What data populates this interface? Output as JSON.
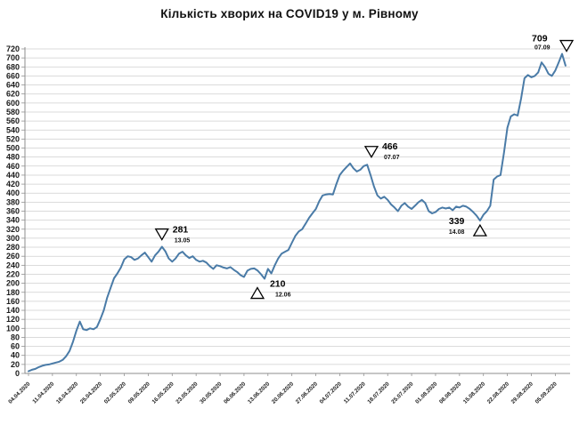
{
  "title": "Кількість хворих на COVID19 у м. Рівному",
  "chart_data": {
    "type": "line",
    "title": "Кількість хворих на COVID19 у м. Рівному",
    "xlabel": "",
    "ylabel": "",
    "grid": true,
    "legend": "none",
    "line_color": "#4a7ba7",
    "grid_color": "#cfcfcf",
    "axis_color": "#8c8c8c",
    "y_axis": {
      "min": 0,
      "max": 720,
      "step": 20
    },
    "x_start_date": "04.04.2020",
    "x_end_date": "08.09.2020",
    "x_tick_labels": [
      "04.04.2020",
      "11.04.2020",
      "18.04.2020",
      "25.04.2020",
      "02.05.2020",
      "09.05.2020",
      "16.05.2020",
      "23.05.2020",
      "30.05.2020",
      "06.06.2020",
      "13.06.2020",
      "20.06.2020",
      "27.06.2020",
      "04.07.2020",
      "11.07.2020",
      "18.07.2020",
      "25.07.2020",
      "01.08.2020",
      "08.08.2020",
      "15.08.2020",
      "22.08.2020",
      "29.08.2020",
      "05.09.2020"
    ],
    "series": [
      {
        "name": "Кількість хворих",
        "values": [
          5,
          8,
          10,
          14,
          17,
          19,
          20,
          22,
          24,
          26,
          30,
          38,
          50,
          70,
          95,
          115,
          98,
          96,
          100,
          98,
          103,
          120,
          140,
          168,
          190,
          211,
          222,
          235,
          253,
          260,
          258,
          252,
          255,
          262,
          268,
          258,
          248,
          262,
          270,
          281,
          271,
          255,
          248,
          255,
          266,
          270,
          262,
          256,
          260,
          252,
          248,
          250,
          246,
          238,
          232,
          240,
          238,
          235,
          233,
          236,
          230,
          225,
          218,
          214,
          228,
          232,
          233,
          228,
          220,
          210,
          232,
          222,
          240,
          255,
          266,
          270,
          274,
          290,
          305,
          315,
          320,
          332,
          345,
          355,
          365,
          382,
          395,
          397,
          398,
          397,
          420,
          440,
          450,
          458,
          466,
          455,
          448,
          452,
          460,
          463,
          440,
          415,
          395,
          388,
          392,
          385,
          375,
          368,
          360,
          372,
          378,
          370,
          365,
          372,
          380,
          385,
          378,
          360,
          355,
          358,
          365,
          368,
          366,
          368,
          362,
          370,
          368,
          372,
          370,
          365,
          358,
          350,
          339,
          352,
          360,
          372,
          430,
          437,
          440,
          490,
          545,
          570,
          575,
          572,
          610,
          655,
          662,
          657,
          660,
          668,
          690,
          680,
          665,
          660,
          672,
          690,
          709,
          683
        ]
      }
    ],
    "annotations": [
      {
        "value": "281",
        "date": "13.05",
        "day_index": 39,
        "marker": "down"
      },
      {
        "value": "210",
        "date": "12.06",
        "day_index": 69,
        "marker": "up"
      },
      {
        "value": "466",
        "date": "07.07",
        "day_index": 94,
        "marker": "down"
      },
      {
        "value": "339",
        "date": "14.08",
        "day_index": 132,
        "marker": "up"
      },
      {
        "value": "709",
        "date": "07.09",
        "day_index": 156,
        "marker": "down"
      }
    ]
  }
}
